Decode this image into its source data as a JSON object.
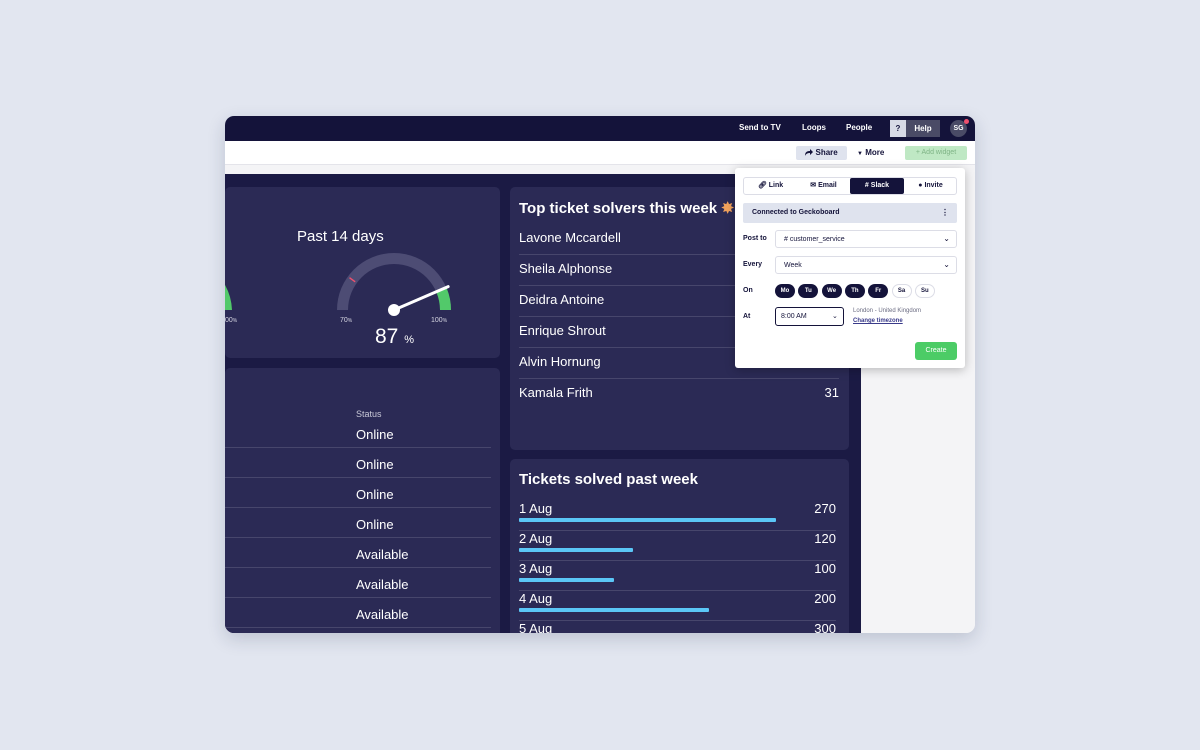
{
  "topbar": {
    "send_to_tv": "Send to TV",
    "loops": "Loops",
    "people": "People",
    "help_q": "?",
    "help": "Help",
    "avatar": "SG"
  },
  "toolbar": {
    "share": "Share",
    "more": "More",
    "add_widget": "+ Add widget"
  },
  "gauge": {
    "title": "Past 14 days",
    "min_label": "70",
    "max_label": "100",
    "left_partial_label": "00",
    "value": "87",
    "unit": "%",
    "small_unit": "%"
  },
  "status": {
    "header": "Status",
    "rows": [
      "Online",
      "Online",
      "Online",
      "Online",
      "Available",
      "Available",
      "Available"
    ]
  },
  "solvers": {
    "title": "Top ticket solvers this week",
    "rows": [
      {
        "name": "Lavone Mccardell",
        "count": ""
      },
      {
        "name": "Sheila Alphonse",
        "count": ""
      },
      {
        "name": "Deidra Antoine",
        "count": ""
      },
      {
        "name": "Enrique Shrout",
        "count": ""
      },
      {
        "name": "Alvin Hornung",
        "count": ""
      },
      {
        "name": "Kamala Frith",
        "count": "31"
      }
    ]
  },
  "tickets": {
    "title": "Tickets solved past week",
    "max": 300,
    "rows": [
      {
        "date": "1 Aug",
        "value": 270
      },
      {
        "date": "2 Aug",
        "value": 120
      },
      {
        "date": "3 Aug",
        "value": 100
      },
      {
        "date": "4 Aug",
        "value": 200
      },
      {
        "date": "5 Aug",
        "value": 300
      }
    ]
  },
  "share_popup": {
    "tabs": [
      "Link",
      "Email",
      "Slack",
      "Invite"
    ],
    "connected": "Connected to Geckoboard",
    "post_to_label": "Post to",
    "post_to_value": "# customer_service",
    "every_label": "Every",
    "every_value": "Week",
    "on_label": "On",
    "days": [
      {
        "label": "Mo",
        "selected": true
      },
      {
        "label": "Tu",
        "selected": true
      },
      {
        "label": "We",
        "selected": true
      },
      {
        "label": "Th",
        "selected": true
      },
      {
        "label": "Fr",
        "selected": true
      },
      {
        "label": "Sa",
        "selected": false
      },
      {
        "label": "Su",
        "selected": false
      }
    ],
    "at_label": "At",
    "at_value": "8:00 AM",
    "timezone": "London - United Kingdom",
    "change_timezone": "Change timezone",
    "create": "Create"
  },
  "colors": {
    "navy": "#14133a",
    "card": "#2b2a55",
    "gauge_green": "#52c96a",
    "bar_blue": "#5bc7f7",
    "create_green": "#4ccc66"
  }
}
